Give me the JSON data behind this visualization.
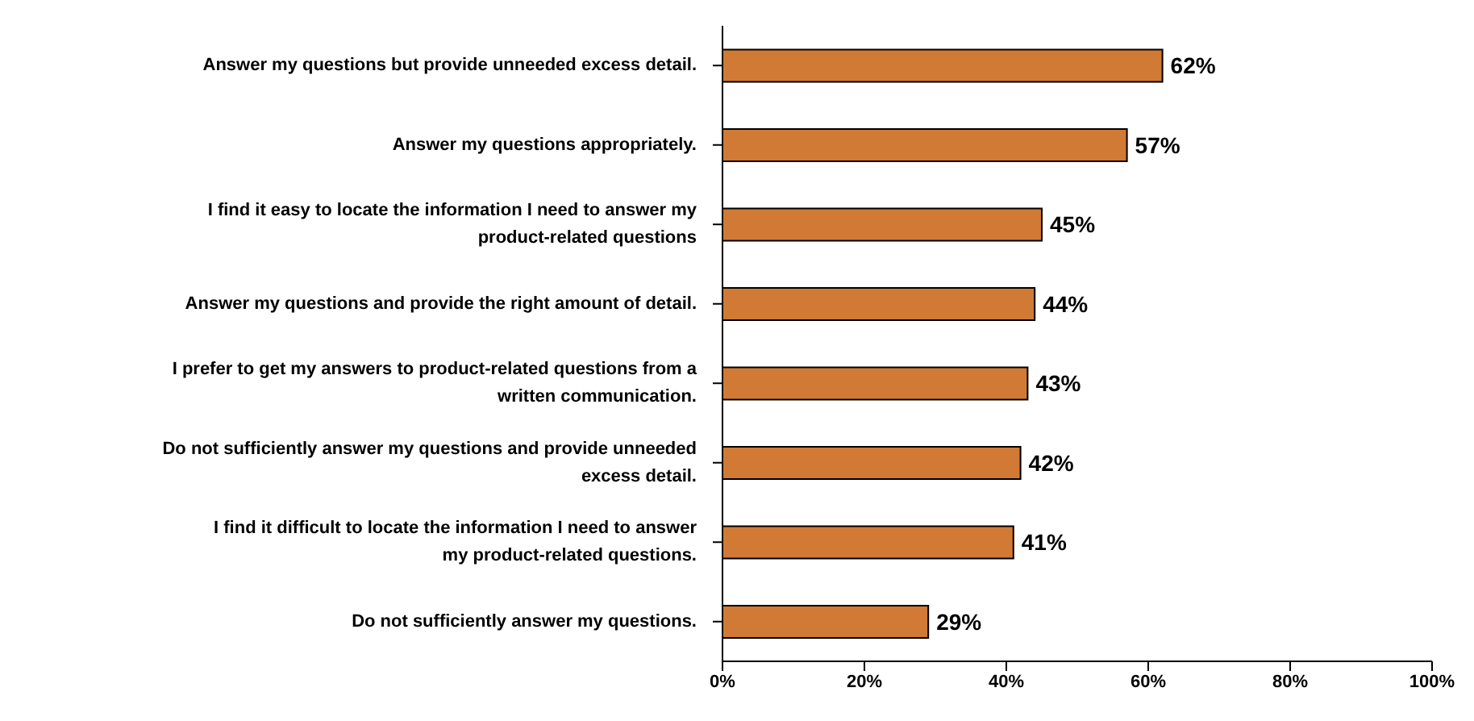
{
  "chart_data": {
    "type": "bar",
    "orientation": "horizontal",
    "categories": [
      "Answer my questions but provide unneeded excess detail.",
      "Answer my questions appropriately.",
      "I find it easy to locate the information I need to answer my product-related questions",
      "Answer my questions and provide the right amount of detail.",
      "I prefer to get my answers to product-related questions from a written communication.",
      "Do not sufficiently answer my questions and provide unneeded excess detail.",
      "I find it difficult to locate the information I need to answer my product-related questions.",
      "Do not sufficiently answer my questions."
    ],
    "values": [
      62,
      57,
      45,
      44,
      43,
      42,
      41,
      29
    ],
    "value_labels": [
      "62%",
      "57%",
      "45%",
      "44%",
      "43%",
      "42%",
      "41%",
      "29%"
    ],
    "color": "#d07a35",
    "xlim": [
      0,
      100
    ],
    "xticks": [
      {
        "value": 0,
        "label": "0%"
      },
      {
        "value": 20,
        "label": "20%"
      },
      {
        "value": 40,
        "label": "40%"
      },
      {
        "value": 60,
        "label": "60%"
      },
      {
        "value": 80,
        "label": "80%"
      },
      {
        "value": 100,
        "label": "100%"
      }
    ],
    "grid": false,
    "legend": false
  }
}
